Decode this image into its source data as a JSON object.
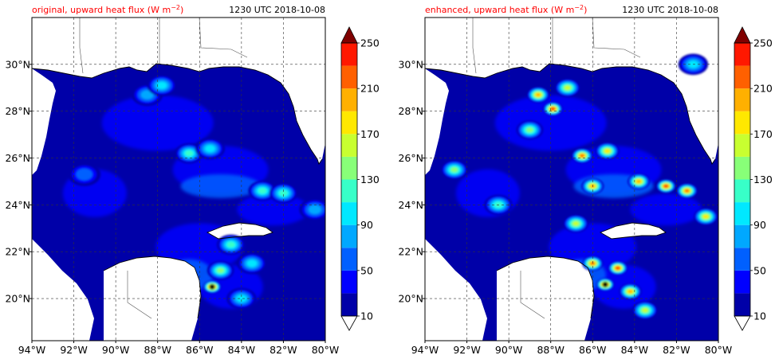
{
  "figure": {
    "panels": [
      {
        "id": "original",
        "title_main": "original, upward heat flux (W m",
        "title_exp": "−2",
        "title_end": ")",
        "timestamp": "1230 UTC 2018-10-08"
      },
      {
        "id": "enhanced",
        "title_main": "enhanced, upward heat flux (W m",
        "title_exp": "−2",
        "title_end": ")",
        "timestamp": "1230 UTC 2018-10-08"
      }
    ],
    "lon_ticks": [
      "94°W",
      "92°W",
      "90°W",
      "88°W",
      "86°W",
      "84°W",
      "82°W",
      "80°W"
    ],
    "lat_ticks": [
      "30°N",
      "28°N",
      "26°N",
      "24°N",
      "22°N",
      "20°N"
    ],
    "colorbar": {
      "labels": [
        "250",
        "210",
        "170",
        "130",
        "90",
        "50",
        "10"
      ],
      "levels": [
        10,
        30,
        50,
        70,
        90,
        110,
        130,
        150,
        170,
        190,
        210,
        230,
        250
      ],
      "colors": [
        "#0000a8",
        "#0000ff",
        "#0060ff",
        "#00a8ff",
        "#00e8ff",
        "#38ffc8",
        "#88ff78",
        "#c8ff30",
        "#ffe800",
        "#ffb000",
        "#ff6000",
        "#ff1800",
        "#b00000"
      ],
      "over_color": "#800000",
      "under_color": "#ffffff"
    }
  },
  "chart_data": {
    "type": "heatmap",
    "variable": "upward heat flux",
    "units": "W m−2",
    "time": "1230 UTC 2018-10-08",
    "lon_range": [
      -94,
      -80
    ],
    "lat_range": [
      18.2,
      32
    ],
    "color_levels": [
      10,
      30,
      50,
      70,
      90,
      110,
      130,
      150,
      170,
      190,
      210,
      230,
      250
    ],
    "grid": true,
    "panels": [
      {
        "name": "original",
        "features": [
          {
            "lon": -85.4,
            "lat": 20.5,
            "value": 250
          },
          {
            "lon": -85.0,
            "lat": 21.2,
            "value": 130
          },
          {
            "lon": -84.5,
            "lat": 22.3,
            "value": 110
          },
          {
            "lon": -86.5,
            "lat": 26.2,
            "value": 110
          },
          {
            "lon": -85.5,
            "lat": 26.4,
            "value": 90
          },
          {
            "lon": -83.0,
            "lat": 24.6,
            "value": 110
          },
          {
            "lon": -82.0,
            "lat": 24.5,
            "value": 110
          },
          {
            "lon": -80.5,
            "lat": 23.8,
            "value": 70
          },
          {
            "lon": -88.5,
            "lat": 28.7,
            "value": 70
          },
          {
            "lon": -87.8,
            "lat": 29.1,
            "value": 90
          },
          {
            "lon": -91.5,
            "lat": 25.3,
            "value": 50
          },
          {
            "lon": -84.0,
            "lat": 20.0,
            "value": 90
          },
          {
            "lon": -83.5,
            "lat": 21.5,
            "value": 90
          }
        ]
      },
      {
        "name": "enhanced",
        "features": [
          {
            "lon": -85.4,
            "lat": 20.6,
            "value": 250
          },
          {
            "lon": -84.8,
            "lat": 21.3,
            "value": 230
          },
          {
            "lon": -86.0,
            "lat": 21.5,
            "value": 210
          },
          {
            "lon": -84.2,
            "lat": 20.3,
            "value": 190
          },
          {
            "lon": -83.5,
            "lat": 19.5,
            "value": 150
          },
          {
            "lon": -82.5,
            "lat": 24.8,
            "value": 230
          },
          {
            "lon": -81.5,
            "lat": 24.6,
            "value": 210
          },
          {
            "lon": -83.8,
            "lat": 25.0,
            "value": 190
          },
          {
            "lon": -80.6,
            "lat": 23.5,
            "value": 170
          },
          {
            "lon": -86.5,
            "lat": 26.1,
            "value": 210
          },
          {
            "lon": -85.3,
            "lat": 26.3,
            "value": 170
          },
          {
            "lon": -87.9,
            "lat": 28.1,
            "value": 230
          },
          {
            "lon": -88.6,
            "lat": 28.7,
            "value": 190
          },
          {
            "lon": -87.2,
            "lat": 29.0,
            "value": 150
          },
          {
            "lon": -89.0,
            "lat": 27.2,
            "value": 130
          },
          {
            "lon": -92.6,
            "lat": 25.5,
            "value": 130
          },
          {
            "lon": -86.0,
            "lat": 24.8,
            "value": 190
          },
          {
            "lon": -90.5,
            "lat": 24.0,
            "value": 110
          },
          {
            "lon": -86.8,
            "lat": 23.2,
            "value": 150
          },
          {
            "lon": -81.2,
            "lat": 30.0,
            "value": 90
          }
        ]
      }
    ]
  }
}
